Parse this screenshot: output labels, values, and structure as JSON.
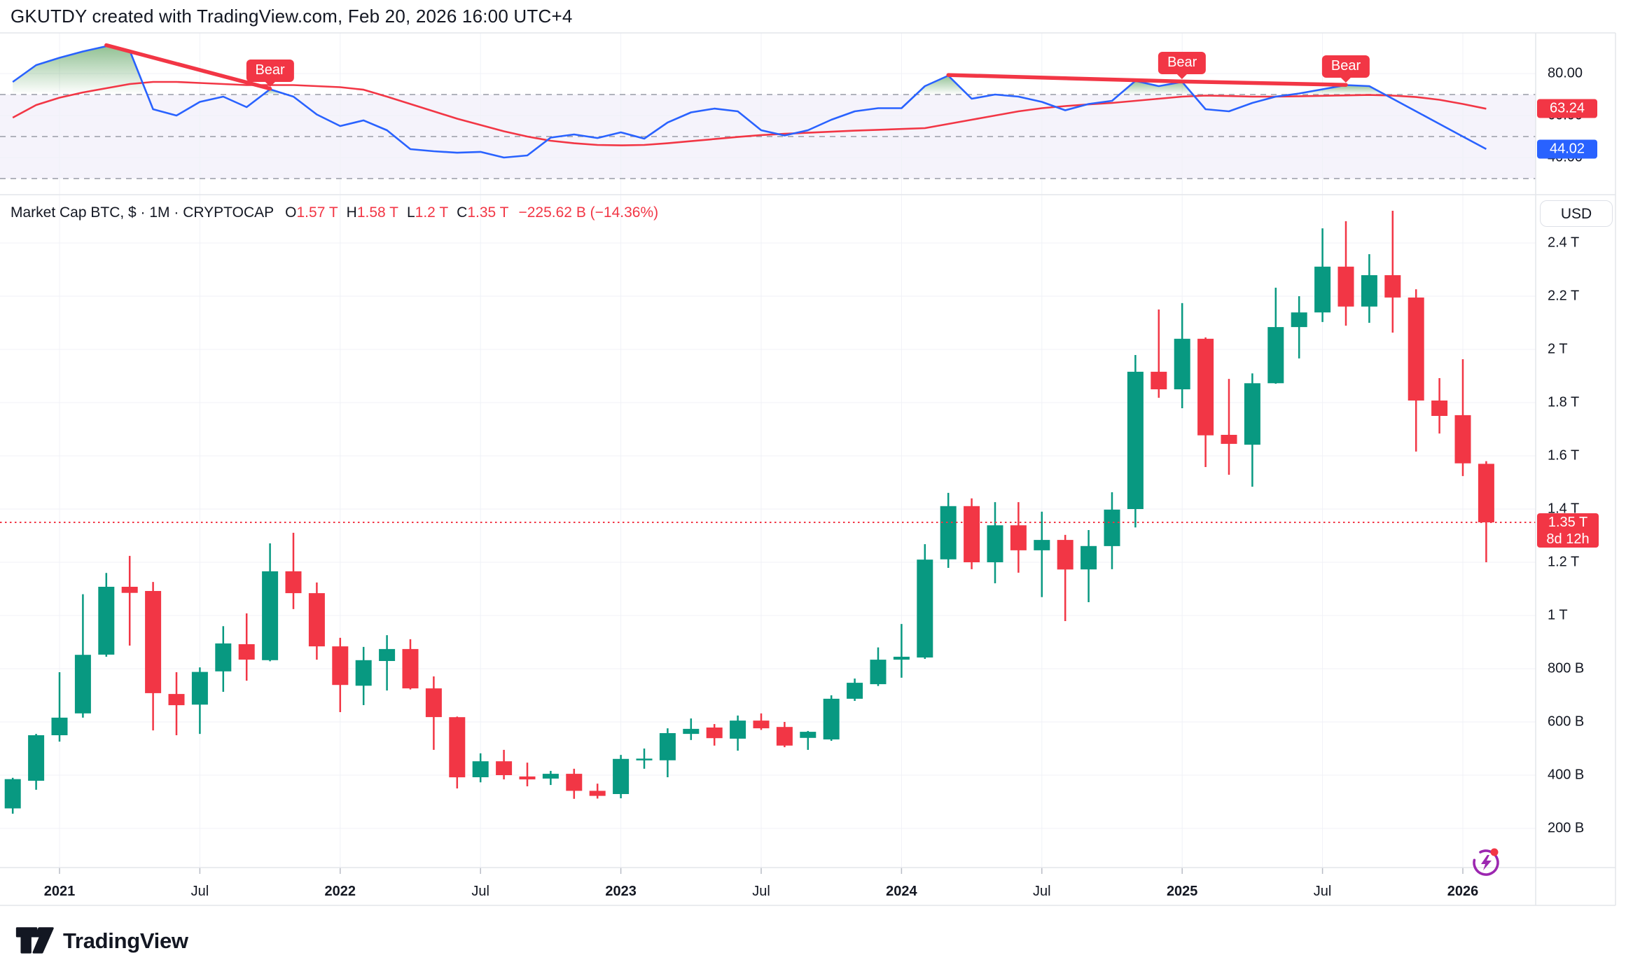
{
  "header": {
    "title": "GKUTDY created with TradingView.com, Feb 20, 2026 16:00 UTC+4"
  },
  "legend": {
    "symbol": "Market Cap BTC, $ · 1M · CRYPTOCAP",
    "ohlc": [
      {
        "k": "O",
        "v": "1.57 T"
      },
      {
        "k": "H",
        "v": "1.58 T"
      },
      {
        "k": "L",
        "v": "1.2 T"
      },
      {
        "k": "C",
        "v": "1.35 T"
      }
    ],
    "change": "−225.62 B (−14.36%)"
  },
  "price_scale": {
    "currency_button": "USD",
    "badge": {
      "line1": "1.35 T",
      "line2": "8d 12h"
    }
  },
  "indicator_scale": {
    "labels": [
      {
        "text": "80.00",
        "value": 80
      },
      {
        "text": "60.00",
        "value": 60
      },
      {
        "text": "40.00",
        "value": 40
      }
    ],
    "value_badges": [
      {
        "text": "63.24",
        "value": 63.24,
        "color": "#f23645"
      },
      {
        "text": "44.02",
        "value": 44.02,
        "color": "#2962ff"
      }
    ]
  },
  "time_axis": [
    {
      "label": "2021",
      "month_index": 2,
      "bold": true
    },
    {
      "label": "Jul",
      "month_index": 8,
      "bold": false
    },
    {
      "label": "2022",
      "month_index": 14,
      "bold": true
    },
    {
      "label": "Jul",
      "month_index": 20,
      "bold": false
    },
    {
      "label": "2023",
      "month_index": 26,
      "bold": true
    },
    {
      "label": "Jul",
      "month_index": 32,
      "bold": false
    },
    {
      "label": "2024",
      "month_index": 38,
      "bold": true
    },
    {
      "label": "Jul",
      "month_index": 44,
      "bold": false
    },
    {
      "label": "2025",
      "month_index": 50,
      "bold": true
    },
    {
      "label": "Jul",
      "month_index": 56,
      "bold": false
    },
    {
      "label": "2026",
      "month_index": 62,
      "bold": true
    }
  ],
  "footer": {
    "brand": "TradingView"
  },
  "colors": {
    "up": "#089981",
    "down": "#f23645",
    "rsi_line": "#2962ff",
    "rsi_ma": "#f23645",
    "grid": "#f0f2f7",
    "dashed_level": "#a6a9b3",
    "band_fill": "rgba(116,82,204,0.07)",
    "separator": "#e3e5ea",
    "overbought_green": "rgb(56,142,60)",
    "price_line": "#f23645",
    "tick": "#b8bcc6",
    "accent_purple": "#9c27b0"
  },
  "chart_data": [
    {
      "type": "candlestick",
      "pane": "main",
      "title": "Market Cap BTC, $ · 1M · CRYPTOCAP",
      "x_months": [
        "2020-11",
        "2020-12",
        "2021-01",
        "2021-02",
        "2021-03",
        "2021-04",
        "2021-05",
        "2021-06",
        "2021-07",
        "2021-08",
        "2021-09",
        "2021-10",
        "2021-11",
        "2021-12",
        "2022-01",
        "2022-02",
        "2022-03",
        "2022-04",
        "2022-05",
        "2022-06",
        "2022-07",
        "2022-08",
        "2022-09",
        "2022-10",
        "2022-11",
        "2022-12",
        "2023-01",
        "2023-02",
        "2023-03",
        "2023-04",
        "2023-05",
        "2023-06",
        "2023-07",
        "2023-08",
        "2023-09",
        "2023-10",
        "2023-11",
        "2023-12",
        "2024-01",
        "2024-02",
        "2024-03",
        "2024-04",
        "2024-05",
        "2024-06",
        "2024-07",
        "2024-08",
        "2024-09",
        "2024-10",
        "2024-11",
        "2024-12",
        "2025-01",
        "2025-02",
        "2025-03",
        "2025-04",
        "2025-05",
        "2025-06",
        "2025-07",
        "2025-08",
        "2025-09",
        "2025-10",
        "2025-11",
        "2025-12",
        "2026-01",
        "2026-02"
      ],
      "ohlc_billions": [
        [
          275,
          390,
          255,
          385
        ],
        [
          379,
          555,
          345,
          550
        ],
        [
          550,
          787,
          526,
          616
        ],
        [
          632,
          1080,
          616,
          852
        ],
        [
          853,
          1160,
          845,
          1108
        ],
        [
          1108,
          1224,
          887,
          1085
        ],
        [
          1092,
          1126,
          568,
          708
        ],
        [
          705,
          787,
          550,
          663
        ],
        [
          665,
          805,
          555,
          788
        ],
        [
          790,
          960,
          713,
          895
        ],
        [
          892,
          1008,
          755,
          834
        ],
        [
          832,
          1271,
          828,
          1166
        ],
        [
          1166,
          1311,
          1024,
          1084
        ],
        [
          1084,
          1124,
          834,
          884
        ],
        [
          884,
          916,
          637,
          739
        ],
        [
          736,
          882,
          663,
          832
        ],
        [
          829,
          926,
          718,
          874
        ],
        [
          874,
          911,
          722,
          726
        ],
        [
          726,
          771,
          495,
          618
        ],
        [
          618,
          620,
          350,
          392
        ],
        [
          392,
          482,
          373,
          452
        ],
        [
          452,
          495,
          384,
          400
        ],
        [
          395,
          447,
          358,
          384
        ],
        [
          387,
          416,
          363,
          405
        ],
        [
          405,
          424,
          311,
          341
        ],
        [
          341,
          368,
          312,
          322
        ],
        [
          329,
          476,
          313,
          461
        ],
        [
          458,
          500,
          424,
          462
        ],
        [
          456,
          576,
          392,
          558
        ],
        [
          555,
          613,
          532,
          574
        ],
        [
          579,
          592,
          511,
          539
        ],
        [
          537,
          624,
          492,
          605
        ],
        [
          605,
          632,
          570,
          576
        ],
        [
          581,
          600,
          505,
          511
        ],
        [
          540,
          566,
          495,
          563
        ],
        [
          534,
          700,
          529,
          687
        ],
        [
          687,
          763,
          679,
          747
        ],
        [
          742,
          880,
          735,
          834
        ],
        [
          834,
          968,
          766,
          845
        ],
        [
          842,
          1268,
          837,
          1210
        ],
        [
          1211,
          1461,
          1179,
          1411
        ],
        [
          1411,
          1440,
          1174,
          1200
        ],
        [
          1200,
          1426,
          1121,
          1339
        ],
        [
          1339,
          1426,
          1161,
          1245
        ],
        [
          1245,
          1390,
          1069,
          1284
        ],
        [
          1284,
          1303,
          979,
          1173
        ],
        [
          1173,
          1321,
          1050,
          1261
        ],
        [
          1261,
          1463,
          1174,
          1398
        ],
        [
          1400,
          1979,
          1331,
          1916
        ],
        [
          1916,
          2150,
          1818,
          1850
        ],
        [
          1850,
          2174,
          1779,
          2040
        ],
        [
          2040,
          2045,
          1558,
          1677
        ],
        [
          1679,
          1889,
          1529,
          1645
        ],
        [
          1642,
          1910,
          1484,
          1873
        ],
        [
          1873,
          2232,
          1871,
          2084
        ],
        [
          2084,
          2200,
          1966,
          2139
        ],
        [
          2139,
          2455,
          2103,
          2311
        ],
        [
          2311,
          2482,
          2089,
          2161
        ],
        [
          2161,
          2358,
          2100,
          2279
        ],
        [
          2279,
          2521,
          2063,
          2195
        ],
        [
          2195,
          2226,
          1616,
          1808
        ],
        [
          1808,
          1892,
          1684,
          1750
        ],
        [
          1753,
          1963,
          1524,
          1572
        ],
        [
          1570,
          1580,
          1200,
          1350
        ]
      ],
      "ylim_billions": [
        200,
        2400
      ],
      "y_ticks": [
        {
          "text": "2.4 T",
          "value": 2400
        },
        {
          "text": "2.2 T",
          "value": 2200
        },
        {
          "text": "2 T",
          "value": 2000
        },
        {
          "text": "1.8 T",
          "value": 1800
        },
        {
          "text": "1.6 T",
          "value": 1600
        },
        {
          "text": "1.4 T",
          "value": 1400
        },
        {
          "text": "1.2 T",
          "value": 1200
        },
        {
          "text": "1 T",
          "value": 1000
        },
        {
          "text": "800 B",
          "value": 800
        },
        {
          "text": "600 B",
          "value": 600
        },
        {
          "text": "400 B",
          "value": 400
        },
        {
          "text": "200 B",
          "value": 200
        }
      ],
      "last_price_billions": 1350,
      "grid": true
    },
    {
      "type": "line",
      "pane": "indicator",
      "series": [
        {
          "name": "rsi",
          "color": "#2962ff",
          "values": [
            76,
            84,
            87.5,
            90.5,
            93,
            91,
            63,
            60,
            66.5,
            69,
            64,
            72.5,
            69,
            60.5,
            55,
            57.7,
            53,
            44,
            43,
            42.3,
            42.7,
            40,
            41,
            49.5,
            51,
            49.3,
            52,
            49,
            56.7,
            61.5,
            63.3,
            62,
            53,
            50.5,
            53,
            58,
            62,
            63.5,
            63.5,
            74,
            79,
            68,
            70,
            69,
            66.5,
            62.5,
            65.5,
            67,
            76.5,
            74,
            76,
            63,
            62,
            66,
            69,
            70.5,
            72.5,
            74.5,
            74,
            68,
            62,
            56,
            50,
            44.02
          ]
        },
        {
          "name": "rsi-ma",
          "color": "#f23645",
          "values": [
            59,
            65,
            68.5,
            71,
            73,
            75,
            76,
            76,
            75.5,
            75,
            74.5,
            74.5,
            74.5,
            74,
            73.5,
            72.3,
            69,
            65.5,
            62,
            58.5,
            55.5,
            52.5,
            50,
            48,
            46.8,
            46,
            45.8,
            46,
            46.8,
            47.8,
            48.8,
            49.8,
            50.7,
            51.3,
            51.8,
            52.3,
            52.8,
            53.2,
            53.6,
            54,
            56,
            58,
            60,
            62,
            63.5,
            64.5,
            65.3,
            66,
            67,
            68,
            69,
            69.5,
            69.3,
            69,
            69,
            69.2,
            69.4,
            69.6,
            69.8,
            69.5,
            68.8,
            67.5,
            65.5,
            63.24
          ]
        }
      ],
      "last_values": {
        "rsi": 44.02,
        "rsi_ma": 63.24
      },
      "levels_dashed": [
        70,
        50,
        30
      ],
      "band": [
        30,
        70
      ],
      "axis_ticks": [
        80,
        60,
        40
      ],
      "overbought_fill_above": 70,
      "bear_divergence_lines": [
        [
          [
            4,
            93.5
          ],
          [
            11,
            72.8
          ]
        ],
        [
          [
            40,
            79.3
          ],
          [
            50,
            76.2
          ],
          [
            57,
            74.6
          ]
        ]
      ],
      "bear_badges": [
        {
          "label": "Bear",
          "month_index": 11
        },
        {
          "label": "Bear",
          "month_index": 50
        },
        {
          "label": "Bear",
          "month_index": 57
        }
      ]
    }
  ]
}
